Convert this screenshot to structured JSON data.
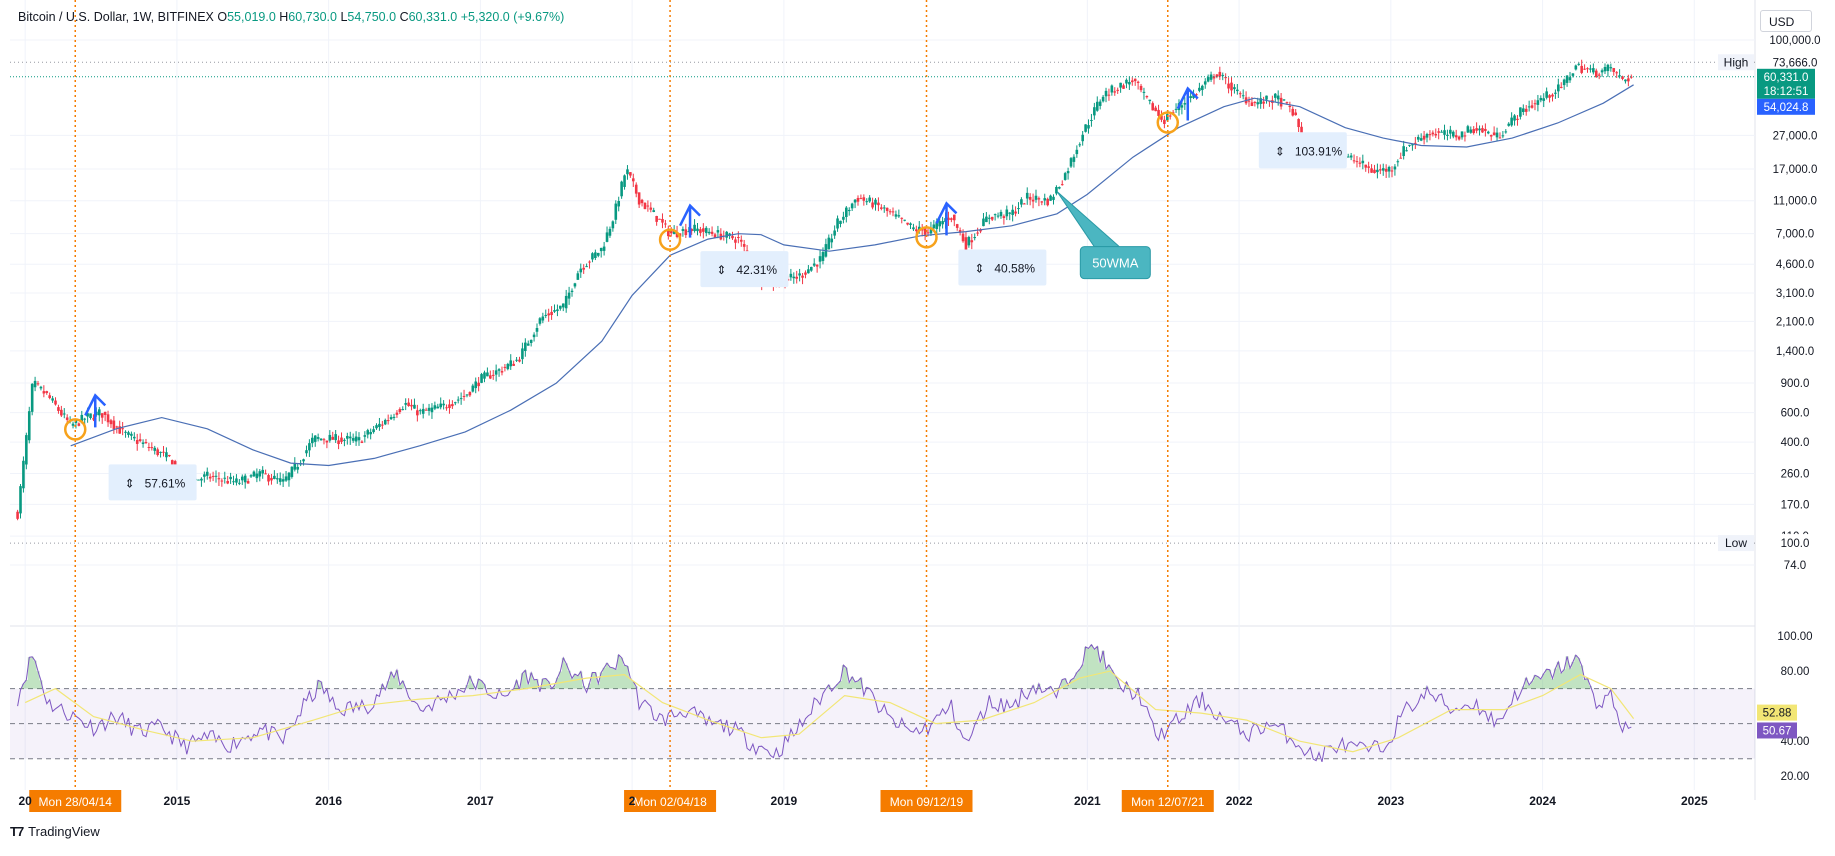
{
  "header": {
    "symbol": "Bitcoin / U.S. Dollar, 1W, BITFINEX",
    "o_label": "O",
    "o_value": "55,019.0",
    "h_label": "H",
    "h_value": "60,730.0",
    "l_label": "L",
    "l_value": "54,750.0",
    "c_label": "C",
    "c_value": "60,331.0",
    "change": "+5,320.0 (+9.67%)"
  },
  "currency_button": "USD",
  "brand": {
    "logo": "T7",
    "name": "TradingView"
  },
  "colors": {
    "up": "#089981",
    "down": "#f23645",
    "ma": "#4a6fb5",
    "rsi": "#7e57c2",
    "rsi_ma": "#f2e675",
    "vline": "#f57c00",
    "arrows": "#2962ff",
    "label_bg": "#e3effd"
  },
  "chart_data": [
    {
      "type": "candlestick",
      "title": "Bitcoin / U.S. Dollar, 1W, BITFINEX",
      "y_scale": "log",
      "y_ticks": [
        "100,000.0",
        "73,666.0",
        "27,000.0",
        "17,000.0",
        "11,000.0",
        "7,000.0",
        "4,600.0",
        "3,100.0",
        "2,100.0",
        "1,400.0",
        "900.0",
        "600.0",
        "400.0",
        "260.0",
        "170.0",
        "110.0",
        "100.0",
        "74.0"
      ],
      "x_ticks": [
        "20",
        "2015",
        "2016",
        "2017",
        "2",
        "2019",
        "2021",
        "2022",
        "2023",
        "2024",
        "2025"
      ],
      "x_range": [
        2013.9,
        2025.4
      ],
      "high": {
        "label": "High",
        "value": "73,666.0"
      },
      "low": {
        "label": "Low",
        "value": "100.0"
      },
      "price_tags": [
        {
          "value": "60,331.0",
          "color": "#089981"
        },
        {
          "value": "18:12:51",
          "color": "#089981"
        },
        {
          "value": "54,024.8",
          "color": "#2962ff"
        }
      ],
      "ma_label": "50WMA",
      "percent_labels": [
        "57.61%",
        "42.31%",
        "40.58%",
        "103.91%"
      ],
      "date_markers": [
        "Mon 28/04/14",
        "Mon 02/04/18",
        "Mon 09/12/19",
        "Mon 12/07/21"
      ],
      "price_anchors": [
        [
          2013.95,
          150
        ],
        [
          2014.05,
          900
        ],
        [
          2014.15,
          750
        ],
        [
          2014.3,
          500
        ],
        [
          2014.4,
          560
        ],
        [
          2014.5,
          600
        ],
        [
          2014.65,
          450
        ],
        [
          2014.8,
          380
        ],
        [
          2014.95,
          320
        ],
        [
          2015.05,
          230
        ],
        [
          2015.2,
          250
        ],
        [
          2015.4,
          230
        ],
        [
          2015.55,
          260
        ],
        [
          2015.7,
          230
        ],
        [
          2015.8,
          300
        ],
        [
          2015.9,
          420
        ],
        [
          2016.0,
          420
        ],
        [
          2016.2,
          410
        ],
        [
          2016.4,
          560
        ],
        [
          2016.5,
          680
        ],
        [
          2016.6,
          600
        ],
        [
          2016.75,
          650
        ],
        [
          2016.9,
          760
        ],
        [
          2017.0,
          950
        ],
        [
          2017.15,
          1100
        ],
        [
          2017.25,
          1250
        ],
        [
          2017.4,
          2200
        ],
        [
          2017.55,
          2600
        ],
        [
          2017.65,
          4300
        ],
        [
          2017.8,
          5700
        ],
        [
          2017.88,
          9000
        ],
        [
          2017.96,
          17000
        ],
        [
          2018.05,
          11000
        ],
        [
          2018.15,
          9000
        ],
        [
          2018.25,
          7000
        ],
        [
          2018.4,
          7500
        ],
        [
          2018.55,
          7000
        ],
        [
          2018.7,
          6500
        ],
        [
          2018.85,
          3800
        ],
        [
          2018.95,
          3600
        ],
        [
          2019.1,
          3900
        ],
        [
          2019.25,
          5000
        ],
        [
          2019.35,
          8000
        ],
        [
          2019.48,
          11500
        ],
        [
          2019.6,
          10500
        ],
        [
          2019.72,
          9000
        ],
        [
          2019.85,
          7500
        ],
        [
          2019.95,
          7200
        ],
        [
          2020.1,
          9000
        ],
        [
          2020.2,
          6000
        ],
        [
          2020.35,
          8900
        ],
        [
          2020.5,
          9200
        ],
        [
          2020.6,
          11500
        ],
        [
          2020.75,
          11000
        ],
        [
          2020.85,
          15500
        ],
        [
          2020.97,
          28000
        ],
        [
          2021.1,
          47000
        ],
        [
          2021.3,
          58000
        ],
        [
          2021.38,
          45000
        ],
        [
          2021.5,
          33000
        ],
        [
          2021.6,
          40000
        ],
        [
          2021.7,
          47000
        ],
        [
          2021.85,
          64000
        ],
        [
          2022.0,
          47000
        ],
        [
          2022.1,
          42000
        ],
        [
          2022.25,
          45000
        ],
        [
          2022.35,
          38000
        ],
        [
          2022.45,
          22000
        ],
        [
          2022.6,
          20000
        ],
        [
          2022.75,
          19500
        ],
        [
          2022.88,
          16500
        ],
        [
          2023.0,
          17000
        ],
        [
          2023.1,
          23000
        ],
        [
          2023.25,
          28000
        ],
        [
          2023.45,
          27000
        ],
        [
          2023.55,
          30000
        ],
        [
          2023.7,
          26500
        ],
        [
          2023.85,
          37000
        ],
        [
          2024.0,
          45000
        ],
        [
          2024.12,
          52000
        ],
        [
          2024.22,
          70000
        ],
        [
          2024.35,
          64000
        ],
        [
          2024.45,
          68000
        ],
        [
          2024.52,
          58000
        ],
        [
          2024.6,
          60331
        ]
      ],
      "ma_points": [
        [
          2014.3,
          380
        ],
        [
          2014.6,
          480
        ],
        [
          2014.9,
          560
        ],
        [
          2015.2,
          480
        ],
        [
          2015.5,
          360
        ],
        [
          2015.75,
          300
        ],
        [
          2016.0,
          290
        ],
        [
          2016.3,
          320
        ],
        [
          2016.6,
          380
        ],
        [
          2016.9,
          460
        ],
        [
          2017.2,
          620
        ],
        [
          2017.5,
          900
        ],
        [
          2017.8,
          1600
        ],
        [
          2018.0,
          3000
        ],
        [
          2018.25,
          5200
        ],
        [
          2018.5,
          6500
        ],
        [
          2018.7,
          7000
        ],
        [
          2018.85,
          6900
        ],
        [
          2019.0,
          6000
        ],
        [
          2019.3,
          5500
        ],
        [
          2019.6,
          6000
        ],
        [
          2019.9,
          6800
        ],
        [
          2020.2,
          7200
        ],
        [
          2020.5,
          7800
        ],
        [
          2020.8,
          9200
        ],
        [
          2021.0,
          12000
        ],
        [
          2021.3,
          20000
        ],
        [
          2021.6,
          30000
        ],
        [
          2021.9,
          40000
        ],
        [
          2022.1,
          45000
        ],
        [
          2022.4,
          40000
        ],
        [
          2022.7,
          30000
        ],
        [
          2022.95,
          26000
        ],
        [
          2023.2,
          23500
        ],
        [
          2023.5,
          23000
        ],
        [
          2023.8,
          26000
        ],
        [
          2024.1,
          32000
        ],
        [
          2024.4,
          42000
        ],
        [
          2024.6,
          54024.8
        ]
      ]
    },
    {
      "type": "line",
      "indicator": "RSI",
      "y_ticks": [
        "100.00",
        "80.00",
        "40.00",
        "20.00"
      ],
      "ylim": [
        15,
        100
      ],
      "band": [
        30,
        70
      ],
      "mid": 50,
      "value_tags": [
        {
          "value": "52.88",
          "color": "#f2e675"
        },
        {
          "value": "50.67",
          "color": "#7e57c2"
        }
      ],
      "rsi_points": [
        [
          2013.95,
          65
        ],
        [
          2014.05,
          90
        ],
        [
          2014.15,
          62
        ],
        [
          2014.3,
          55
        ],
        [
          2014.45,
          48
        ],
        [
          2014.6,
          54
        ],
        [
          2014.75,
          45
        ],
        [
          2014.9,
          48
        ],
        [
          2015.05,
          37
        ],
        [
          2015.2,
          42
        ],
        [
          2015.35,
          38
        ],
        [
          2015.55,
          47
        ],
        [
          2015.7,
          40
        ],
        [
          2015.85,
          62
        ],
        [
          2015.95,
          72
        ],
        [
          2016.05,
          58
        ],
        [
          2016.25,
          60
        ],
        [
          2016.45,
          78
        ],
        [
          2016.6,
          58
        ],
        [
          2016.8,
          66
        ],
        [
          2016.95,
          74
        ],
        [
          2017.15,
          64
        ],
        [
          2017.3,
          78
        ],
        [
          2017.45,
          70
        ],
        [
          2017.55,
          83
        ],
        [
          2017.7,
          72
        ],
        [
          2017.85,
          82
        ],
        [
          2017.95,
          87
        ],
        [
          2018.05,
          62
        ],
        [
          2018.2,
          52
        ],
        [
          2018.35,
          58
        ],
        [
          2018.5,
          50
        ],
        [
          2018.65,
          48
        ],
        [
          2018.8,
          38
        ],
        [
          2018.95,
          33
        ],
        [
          2019.1,
          48
        ],
        [
          2019.25,
          66
        ],
        [
          2019.4,
          81
        ],
        [
          2019.55,
          68
        ],
        [
          2019.7,
          52
        ],
        [
          2019.85,
          45
        ],
        [
          2019.95,
          48
        ],
        [
          2020.1,
          60
        ],
        [
          2020.2,
          38
        ],
        [
          2020.35,
          62
        ],
        [
          2020.5,
          60
        ],
        [
          2020.65,
          72
        ],
        [
          2020.8,
          66
        ],
        [
          2020.95,
          86
        ],
        [
          2021.05,
          95
        ],
        [
          2021.2,
          72
        ],
        [
          2021.35,
          66
        ],
        [
          2021.45,
          42
        ],
        [
          2021.6,
          52
        ],
        [
          2021.75,
          64
        ],
        [
          2021.9,
          52
        ],
        [
          2022.05,
          44
        ],
        [
          2022.2,
          50
        ],
        [
          2022.35,
          42
        ],
        [
          2022.5,
          30
        ],
        [
          2022.65,
          38
        ],
        [
          2022.8,
          35
        ],
        [
          2022.95,
          36
        ],
        [
          2023.1,
          58
        ],
        [
          2023.25,
          68
        ],
        [
          2023.4,
          58
        ],
        [
          2023.55,
          62
        ],
        [
          2023.7,
          50
        ],
        [
          2023.85,
          70
        ],
        [
          2024.0,
          76
        ],
        [
          2024.12,
          82
        ],
        [
          2024.22,
          88
        ],
        [
          2024.35,
          62
        ],
        [
          2024.45,
          66
        ],
        [
          2024.52,
          48
        ],
        [
          2024.6,
          50.67
        ]
      ],
      "rsi_ma_points": [
        [
          2014.0,
          62
        ],
        [
          2014.2,
          70
        ],
        [
          2014.45,
          54
        ],
        [
          2014.8,
          46
        ],
        [
          2015.1,
          40
        ],
        [
          2015.5,
          42
        ],
        [
          2015.9,
          52
        ],
        [
          2016.2,
          60
        ],
        [
          2016.6,
          64
        ],
        [
          2016.95,
          66
        ],
        [
          2017.3,
          70
        ],
        [
          2017.7,
          76
        ],
        [
          2017.95,
          78
        ],
        [
          2018.2,
          62
        ],
        [
          2018.5,
          52
        ],
        [
          2018.85,
          42
        ],
        [
          2019.1,
          44
        ],
        [
          2019.4,
          66
        ],
        [
          2019.7,
          62
        ],
        [
          2020.0,
          50
        ],
        [
          2020.3,
          52
        ],
        [
          2020.65,
          62
        ],
        [
          2020.95,
          76
        ],
        [
          2021.15,
          80
        ],
        [
          2021.45,
          58
        ],
        [
          2021.75,
          56
        ],
        [
          2022.05,
          52
        ],
        [
          2022.4,
          40
        ],
        [
          2022.75,
          34
        ],
        [
          2023.05,
          42
        ],
        [
          2023.4,
          58
        ],
        [
          2023.75,
          58
        ],
        [
          2024.0,
          66
        ],
        [
          2024.25,
          78
        ],
        [
          2024.45,
          70
        ],
        [
          2024.6,
          52.88
        ]
      ]
    }
  ]
}
